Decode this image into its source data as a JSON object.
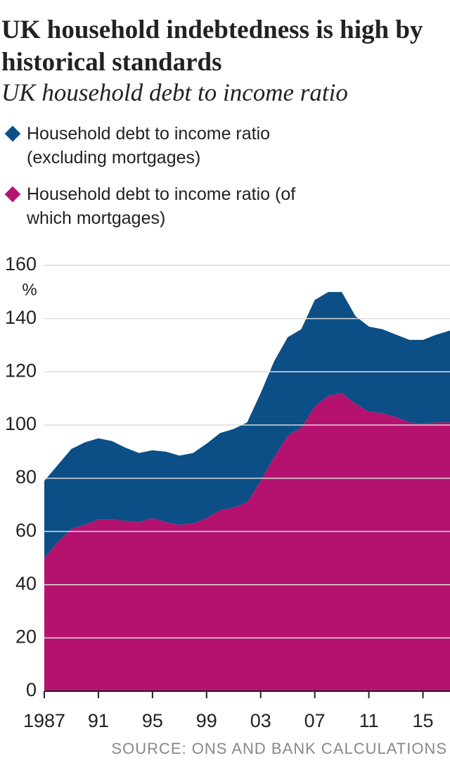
{
  "chart_data": {
    "type": "stacked-area",
    "title": "UK household indebtedness is high by historical standards",
    "subtitle": "UK household debt to income ratio",
    "y_unit": "%",
    "source": "SOURCE: ONS AND BANK CALCULATIONS",
    "x": [
      1987,
      1988,
      1989,
      1990,
      1991,
      1992,
      1993,
      1994,
      1995,
      1996,
      1997,
      1998,
      1999,
      2000,
      2001,
      2002,
      2003,
      2004,
      2005,
      2006,
      2007,
      2008,
      2009,
      2010,
      2011,
      2012,
      2013,
      2014,
      2015,
      2016,
      2017
    ],
    "series": [
      {
        "name": "Household debt to income ratio (excluding mortgages)",
        "color": "#0b4f86",
        "values": [
          29,
          29,
          30,
          31,
          30.5,
          29.5,
          27.5,
          26,
          25.5,
          26.5,
          26,
          26.5,
          28,
          29,
          29.5,
          30,
          33,
          36,
          37,
          37,
          40,
          39,
          38,
          33,
          32,
          31.5,
          31,
          31,
          31.5,
          33,
          34.5
        ]
      },
      {
        "name": "Household debt to income ratio (of which mortgages)",
        "color": "#b5126f",
        "values": [
          50,
          56,
          61,
          62.5,
          64.5,
          64.5,
          64,
          63.5,
          65,
          63.5,
          62.5,
          63,
          65,
          68,
          69,
          71,
          79,
          88,
          96,
          99,
          107,
          111,
          112,
          108,
          105,
          104.5,
          103,
          101,
          100.5,
          101,
          101
        ]
      }
    ],
    "xlim": [
      1987,
      2017
    ],
    "xticks": [
      1987,
      {
        "value": 1991,
        "label": "91"
      },
      {
        "value": 1995,
        "label": "95"
      },
      {
        "value": 1999,
        "label": "99"
      },
      {
        "value": 2003,
        "label": "03"
      },
      {
        "value": 2007,
        "label": "07"
      },
      {
        "value": 2011,
        "label": "11"
      },
      {
        "value": 2015,
        "label": "15"
      }
    ],
    "ylim": [
      0,
      160
    ],
    "yticks": [
      0,
      20,
      40,
      60,
      80,
      100,
      120,
      140,
      160
    ],
    "grid": true
  }
}
